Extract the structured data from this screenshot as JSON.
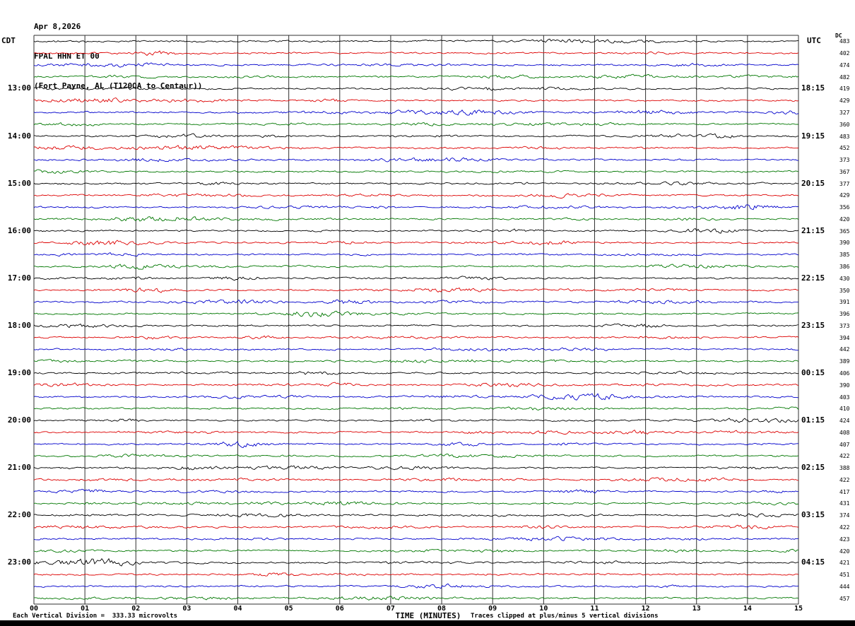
{
  "header": {
    "date": "Apr 8,2026",
    "station": "FPAL HHN ET 00",
    "location": "(Fort Payne, AL (T120QA to Centaur))"
  },
  "axes": {
    "left_header": "CDT",
    "right_header": "UTC",
    "dc_header": "DC",
    "x_axis_title": "TIME (MINUTES)",
    "x_ticks": [
      "00",
      "01",
      "02",
      "03",
      "04",
      "05",
      "06",
      "07",
      "08",
      "09",
      "10",
      "11",
      "12",
      "13",
      "14",
      "15"
    ]
  },
  "footer": {
    "scale_note": "Each Vertical Division =  333.33 microvolts",
    "clip_note": "Traces clipped at plus/minus 5 vertical divisions"
  },
  "colors": {
    "background": "#ffffff",
    "grid": "#303030",
    "trace_colors": {
      "black": "#000000",
      "red": "#dd0000",
      "blue": "#0000cc",
      "green": "#007700"
    }
  },
  "chart_data": {
    "type": "line",
    "subtype": "helicorder_seismogram",
    "title": "FPAL HHN ET 00 (Fort Payne, AL) Apr 8,2026",
    "xlabel": "TIME (MINUTES)",
    "x_range_minutes": [
      0,
      15
    ],
    "minutes_per_row": 15,
    "rows_total": 48,
    "trace_color_cycle": [
      "black",
      "red",
      "blue",
      "green"
    ],
    "vertical_division_microvolts": 333.33,
    "clip_at_divisions": 5,
    "waveform_note": "Continuous ambient seismic background noise; small-amplitude high-frequency traces with occasional slightly larger bursts, well below clip level.",
    "left_time_labels_cdt": [
      "13:00",
      "14:00",
      "15:00",
      "16:00",
      "17:00",
      "18:00",
      "19:00",
      "20:00",
      "21:00",
      "22:00",
      "23:00"
    ],
    "right_time_labels_utc": [
      "18:15",
      "19:15",
      "20:15",
      "21:15",
      "22:15",
      "23:15",
      "00:15",
      "01:15",
      "02:15",
      "03:15",
      "04:15"
    ],
    "rows": [
      {
        "color": "black",
        "cdt_label": "",
        "utc_label": "",
        "dc": 483
      },
      {
        "color": "red",
        "cdt_label": "",
        "utc_label": "",
        "dc": 402
      },
      {
        "color": "blue",
        "cdt_label": "",
        "utc_label": "",
        "dc": 474
      },
      {
        "color": "green",
        "cdt_label": "",
        "utc_label": "",
        "dc": 482
      },
      {
        "color": "black",
        "cdt_label": "13:00",
        "utc_label": "18:15",
        "dc": 419
      },
      {
        "color": "red",
        "cdt_label": "",
        "utc_label": "",
        "dc": 429
      },
      {
        "color": "blue",
        "cdt_label": "",
        "utc_label": "",
        "dc": 327
      },
      {
        "color": "green",
        "cdt_label": "",
        "utc_label": "",
        "dc": 360
      },
      {
        "color": "black",
        "cdt_label": "14:00",
        "utc_label": "19:15",
        "dc": 483
      },
      {
        "color": "red",
        "cdt_label": "",
        "utc_label": "",
        "dc": 452
      },
      {
        "color": "blue",
        "cdt_label": "",
        "utc_label": "",
        "dc": 373
      },
      {
        "color": "green",
        "cdt_label": "",
        "utc_label": "",
        "dc": 367
      },
      {
        "color": "black",
        "cdt_label": "15:00",
        "utc_label": "20:15",
        "dc": 377
      },
      {
        "color": "red",
        "cdt_label": "",
        "utc_label": "",
        "dc": 429
      },
      {
        "color": "blue",
        "cdt_label": "",
        "utc_label": "",
        "dc": 356
      },
      {
        "color": "green",
        "cdt_label": "",
        "utc_label": "",
        "dc": 420
      },
      {
        "color": "black",
        "cdt_label": "16:00",
        "utc_label": "21:15",
        "dc": 365
      },
      {
        "color": "red",
        "cdt_label": "",
        "utc_label": "",
        "dc": 390
      },
      {
        "color": "blue",
        "cdt_label": "",
        "utc_label": "",
        "dc": 385
      },
      {
        "color": "green",
        "cdt_label": "",
        "utc_label": "",
        "dc": 386
      },
      {
        "color": "black",
        "cdt_label": "17:00",
        "utc_label": "22:15",
        "dc": 430
      },
      {
        "color": "red",
        "cdt_label": "",
        "utc_label": "",
        "dc": 350
      },
      {
        "color": "blue",
        "cdt_label": "",
        "utc_label": "",
        "dc": 391
      },
      {
        "color": "green",
        "cdt_label": "",
        "utc_label": "",
        "dc": 396
      },
      {
        "color": "black",
        "cdt_label": "18:00",
        "utc_label": "23:15",
        "dc": 373
      },
      {
        "color": "red",
        "cdt_label": "",
        "utc_label": "",
        "dc": 394
      },
      {
        "color": "blue",
        "cdt_label": "",
        "utc_label": "",
        "dc": 442
      },
      {
        "color": "green",
        "cdt_label": "",
        "utc_label": "",
        "dc": 389
      },
      {
        "color": "black",
        "cdt_label": "19:00",
        "utc_label": "00:15",
        "dc": 406
      },
      {
        "color": "red",
        "cdt_label": "",
        "utc_label": "",
        "dc": 390
      },
      {
        "color": "blue",
        "cdt_label": "",
        "utc_label": "",
        "dc": 403
      },
      {
        "color": "green",
        "cdt_label": "",
        "utc_label": "",
        "dc": 410
      },
      {
        "color": "black",
        "cdt_label": "20:00",
        "utc_label": "01:15",
        "dc": 424
      },
      {
        "color": "red",
        "cdt_label": "",
        "utc_label": "",
        "dc": 408
      },
      {
        "color": "blue",
        "cdt_label": "",
        "utc_label": "",
        "dc": 407
      },
      {
        "color": "green",
        "cdt_label": "",
        "utc_label": "",
        "dc": 422
      },
      {
        "color": "black",
        "cdt_label": "21:00",
        "utc_label": "02:15",
        "dc": 388
      },
      {
        "color": "red",
        "cdt_label": "",
        "utc_label": "",
        "dc": 422
      },
      {
        "color": "blue",
        "cdt_label": "",
        "utc_label": "",
        "dc": 417
      },
      {
        "color": "green",
        "cdt_label": "",
        "utc_label": "",
        "dc": 431
      },
      {
        "color": "black",
        "cdt_label": "22:00",
        "utc_label": "03:15",
        "dc": 374
      },
      {
        "color": "red",
        "cdt_label": "",
        "utc_label": "",
        "dc": 422
      },
      {
        "color": "blue",
        "cdt_label": "",
        "utc_label": "",
        "dc": 423
      },
      {
        "color": "green",
        "cdt_label": "",
        "utc_label": "",
        "dc": 420
      },
      {
        "color": "black",
        "cdt_label": "23:00",
        "utc_label": "04:15",
        "dc": 421
      },
      {
        "color": "red",
        "cdt_label": "",
        "utc_label": "",
        "dc": 451
      },
      {
        "color": "blue",
        "cdt_label": "",
        "utc_label": "",
        "dc": 444
      },
      {
        "color": "green",
        "cdt_label": "",
        "utc_label": "",
        "dc": 457
      }
    ]
  }
}
